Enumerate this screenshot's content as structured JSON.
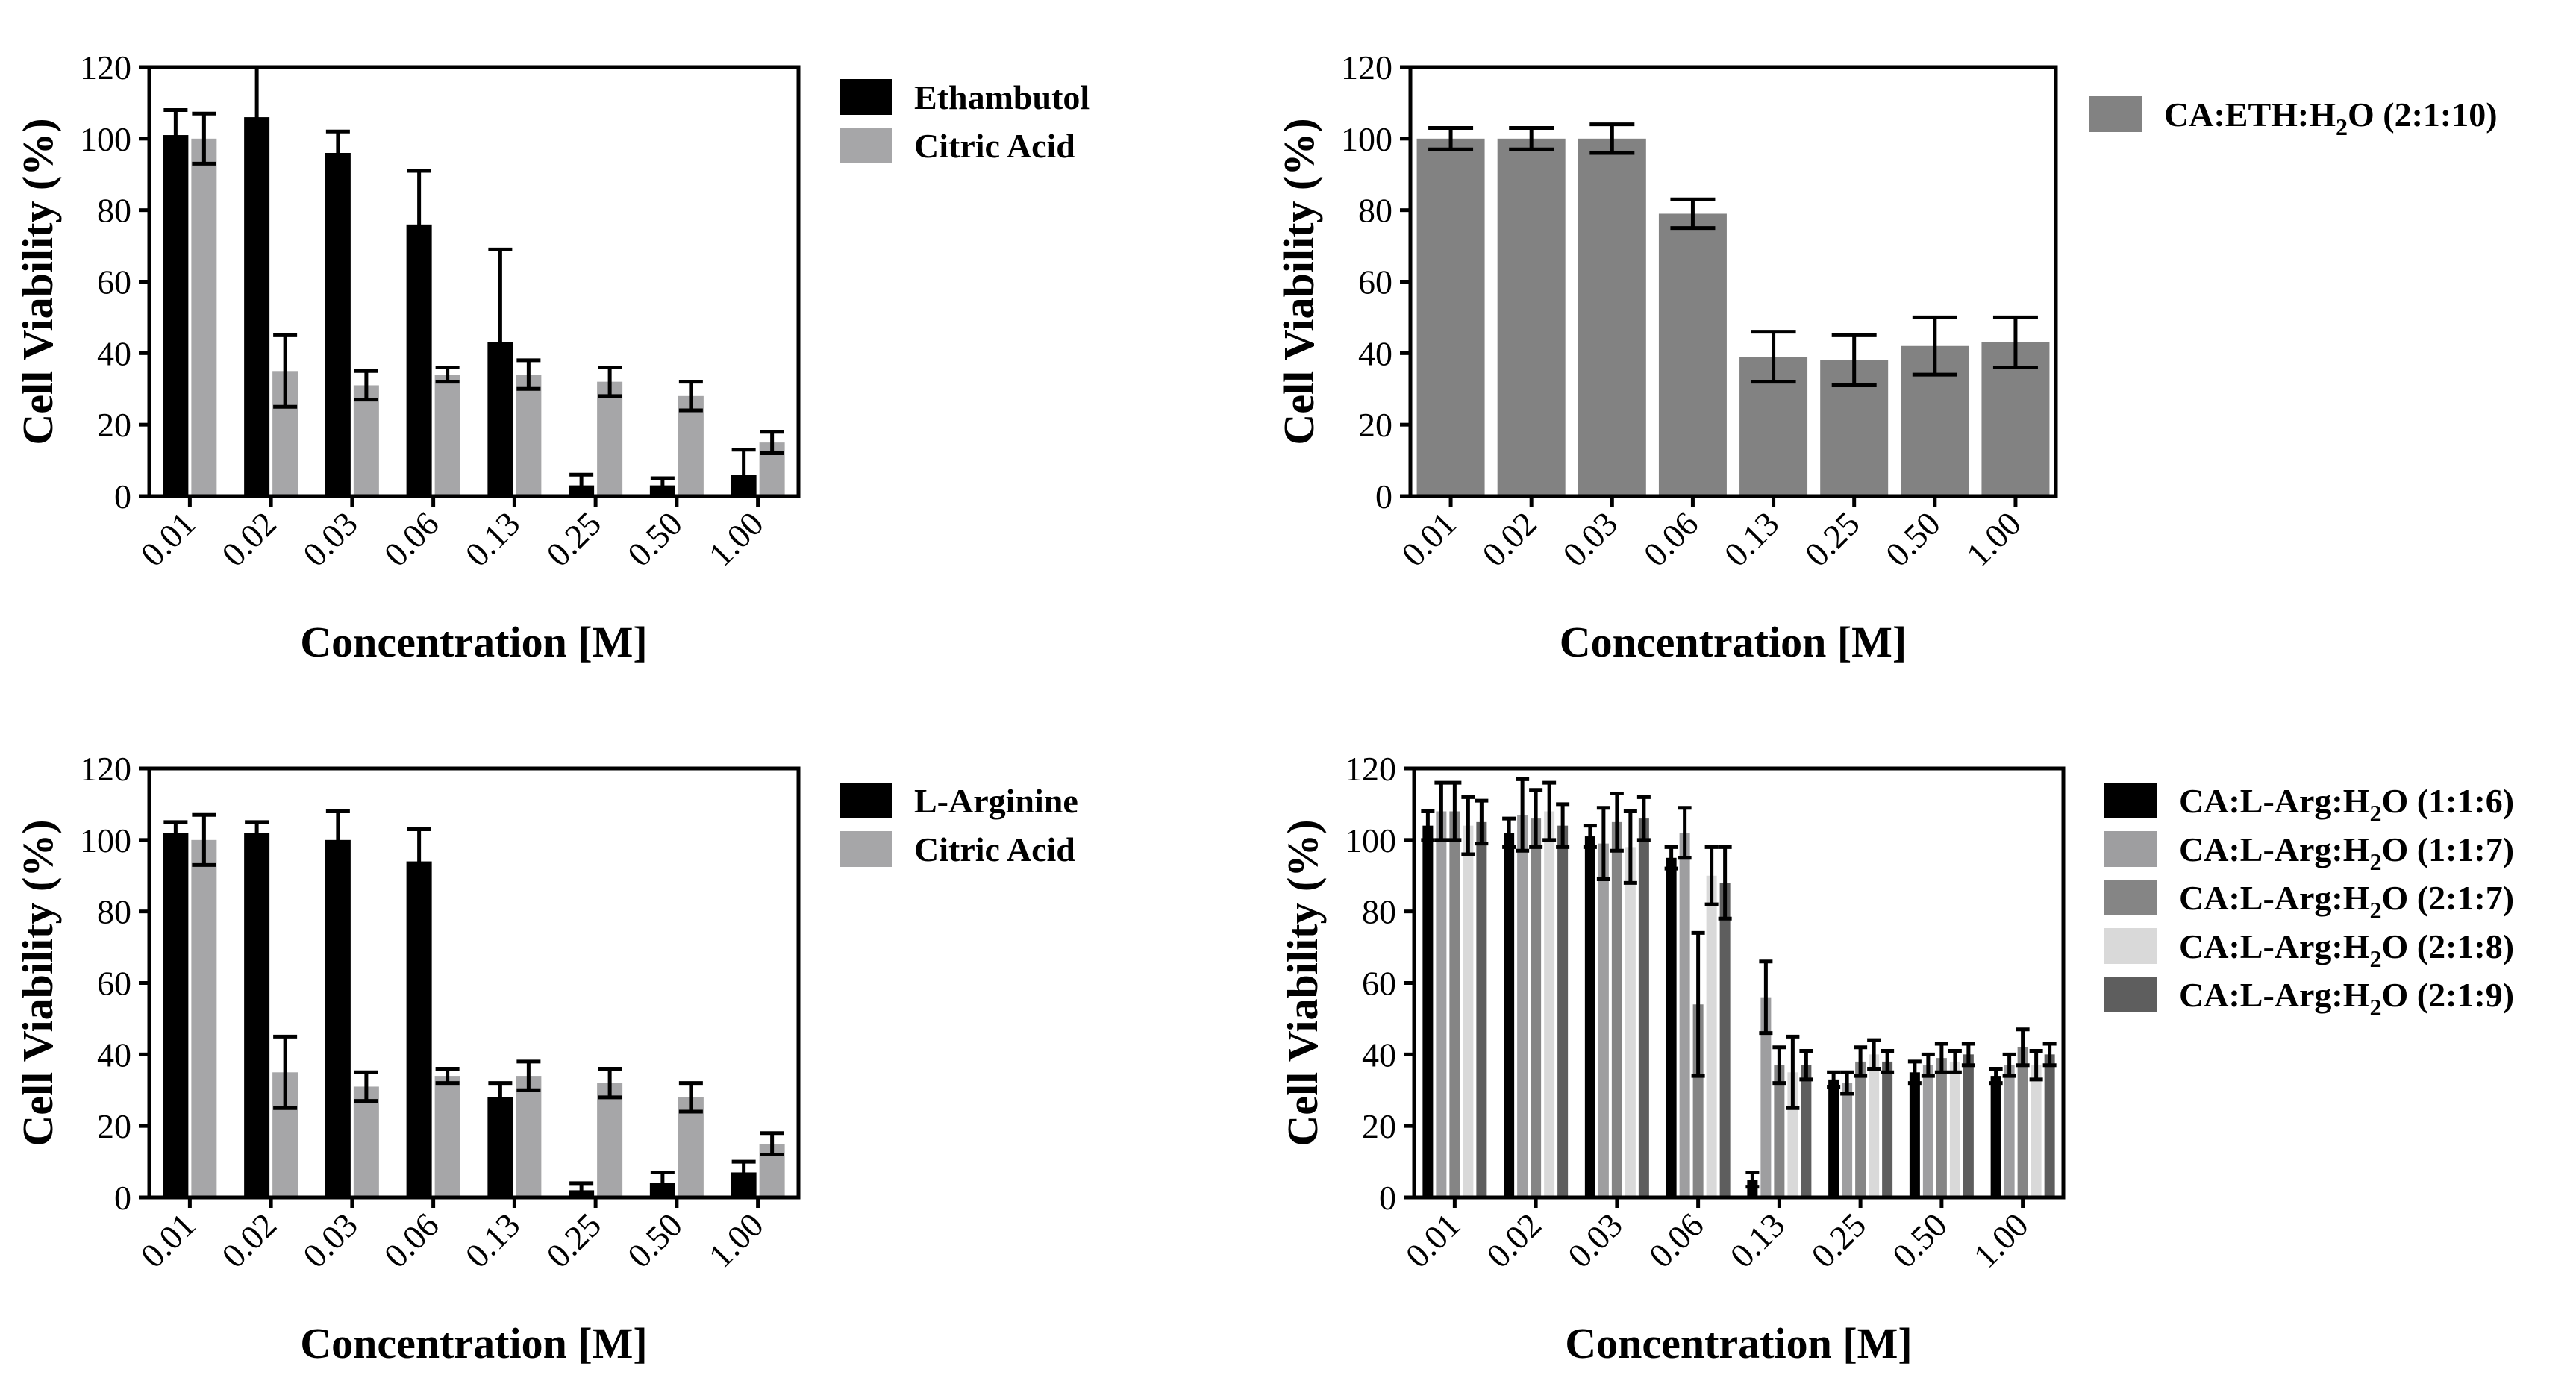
{
  "chart_data": [
    {
      "type": "bar",
      "categories": [
        "0.01",
        "0.02",
        "0.03",
        "0.06",
        "0.13",
        "0.25",
        "0.50",
        "1.00"
      ],
      "series": [
        {
          "name": "Ethambutol",
          "color": "#000000",
          "values": [
            101,
            106,
            96,
            76,
            43,
            3,
            3,
            6
          ],
          "errors": [
            7,
            14,
            6,
            15,
            26,
            3,
            2,
            7
          ]
        },
        {
          "name": "Citric Acid",
          "color": "#a6a6a8",
          "values": [
            100,
            35,
            31,
            34,
            34,
            32,
            28,
            15
          ],
          "errors": [
            7,
            10,
            4,
            2,
            4,
            4,
            4,
            3
          ]
        }
      ],
      "xlabel": "Concentration [M]",
      "ylabel": "Cell Viability (%)",
      "ylim": [
        0,
        120
      ],
      "yticks": [
        0,
        20,
        40,
        60,
        80,
        100,
        120
      ],
      "legend_position": "right"
    },
    {
      "type": "bar",
      "categories": [
        "0.01",
        "0.02",
        "0.03",
        "0.06",
        "0.13",
        "0.25",
        "0.50",
        "1.00"
      ],
      "series": [
        {
          "name": "CA:ETH:H",
          "name_sub": "2",
          "name_tail": "O (2:1:10)",
          "color": "#828282",
          "values": [
            100,
            100,
            100,
            79,
            39,
            38,
            42,
            43
          ],
          "errors": [
            3,
            3,
            4,
            4,
            7,
            7,
            8,
            7
          ]
        }
      ],
      "xlabel": "Concentration [M]",
      "ylabel": "Cell Viability (%)",
      "ylim": [
        0,
        120
      ],
      "yticks": [
        0,
        20,
        40,
        60,
        80,
        100,
        120
      ],
      "legend_position": "right"
    },
    {
      "type": "bar",
      "categories": [
        "0.01",
        "0.02",
        "0.03",
        "0.06",
        "0.13",
        "0.25",
        "0.50",
        "1.00"
      ],
      "series": [
        {
          "name": "L-Arginine",
          "color": "#000000",
          "values": [
            102,
            102,
            100,
            94,
            28,
            2,
            4,
            7
          ],
          "errors": [
            3,
            3,
            8,
            9,
            4,
            2,
            3,
            3
          ]
        },
        {
          "name": "Citric Acid",
          "color": "#a6a6a8",
          "values": [
            100,
            35,
            31,
            34,
            34,
            32,
            28,
            15
          ],
          "errors": [
            7,
            10,
            4,
            2,
            4,
            4,
            4,
            3
          ]
        }
      ],
      "xlabel": "Concentration [M]",
      "ylabel": "Cell Viability (%)",
      "ylim": [
        0,
        120
      ],
      "yticks": [
        0,
        20,
        40,
        60,
        80,
        100,
        120
      ],
      "legend_position": "right"
    },
    {
      "type": "bar",
      "categories": [
        "0.01",
        "0.02",
        "0.03",
        "0.06",
        "0.13",
        "0.25",
        "0.50",
        "1.00"
      ],
      "series": [
        {
          "name": "CA:L-Arg:H",
          "name_sub": "2",
          "name_tail": "O (1:1:6)",
          "color": "#000000",
          "values": [
            104,
            102,
            101,
            95,
            5,
            33,
            35,
            34
          ],
          "errors": [
            4,
            4,
            3,
            3,
            2,
            2,
            3,
            2
          ]
        },
        {
          "name": "CA:L-Arg:H",
          "name_sub": "2",
          "name_tail": "O (1:1:7)",
          "color": "#9e9ea0",
          "values": [
            108,
            107,
            99,
            102,
            56,
            32,
            37,
            37
          ],
          "errors": [
            8,
            10,
            10,
            7,
            10,
            3,
            3,
            3
          ]
        },
        {
          "name": "CA:L-Arg:H",
          "name_sub": "2",
          "name_tail": "O (2:1:7)",
          "color": "#858585",
          "values": [
            108,
            106,
            105,
            54,
            37,
            38,
            39,
            42
          ],
          "errors": [
            8,
            8,
            8,
            20,
            5,
            4,
            4,
            5
          ]
        },
        {
          "name": "CA:L-Arg:H",
          "name_sub": "2",
          "name_tail": "O (2:1:8)",
          "color": "#d9d9d9",
          "values": [
            104,
            108,
            98,
            90,
            35,
            40,
            38,
            37
          ],
          "errors": [
            8,
            8,
            10,
            8,
            10,
            4,
            3,
            4
          ]
        },
        {
          "name": "CA:L-Arg:H",
          "name_sub": "2",
          "name_tail": "O (2:1:9)",
          "color": "#5e5e5e",
          "values": [
            105,
            104,
            106,
            88,
            37,
            38,
            40,
            40
          ],
          "errors": [
            6,
            6,
            6,
            10,
            4,
            3,
            3,
            3
          ]
        }
      ],
      "xlabel": "Concentration [M]",
      "ylabel": "Cell Viability (%)",
      "ylim": [
        0,
        120
      ],
      "yticks": [
        0,
        20,
        40,
        60,
        80,
        100,
        120
      ],
      "legend_position": "right"
    }
  ]
}
